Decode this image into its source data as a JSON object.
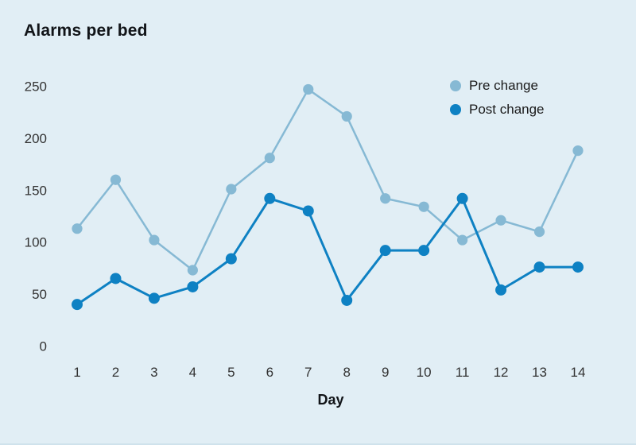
{
  "title": "Alarms per bed",
  "legend": {
    "items": [
      {
        "label": "Pre change"
      },
      {
        "label": "Post change"
      }
    ]
  },
  "colors": {
    "background": "#e1eef5",
    "pre_change": "#86b9d4",
    "post_change": "#0e81c3",
    "title_text": "#111418",
    "tick_text": "#333333",
    "legend_text": "#1a1a1a"
  },
  "chart_data": {
    "type": "line",
    "title": "Alarms per bed",
    "xlabel": "Day",
    "ylabel": "",
    "categories": [
      1,
      2,
      3,
      4,
      5,
      6,
      7,
      8,
      9,
      10,
      11,
      12,
      13,
      14
    ],
    "yticks": [
      0,
      50,
      100,
      150,
      200,
      250
    ],
    "ylim": [
      0,
      260
    ],
    "grid": false,
    "axis_lines": false,
    "legend_position": "top-right",
    "series": [
      {
        "name": "Pre change",
        "color": "#86b9d4",
        "values": [
          113,
          160,
          102,
          73,
          151,
          181,
          247,
          221,
          142,
          134,
          102,
          121,
          110,
          188
        ]
      },
      {
        "name": "Post change",
        "color": "#0e81c3",
        "values": [
          40,
          65,
          46,
          57,
          84,
          142,
          130,
          44,
          92,
          92,
          142,
          54,
          76,
          76
        ]
      }
    ]
  }
}
